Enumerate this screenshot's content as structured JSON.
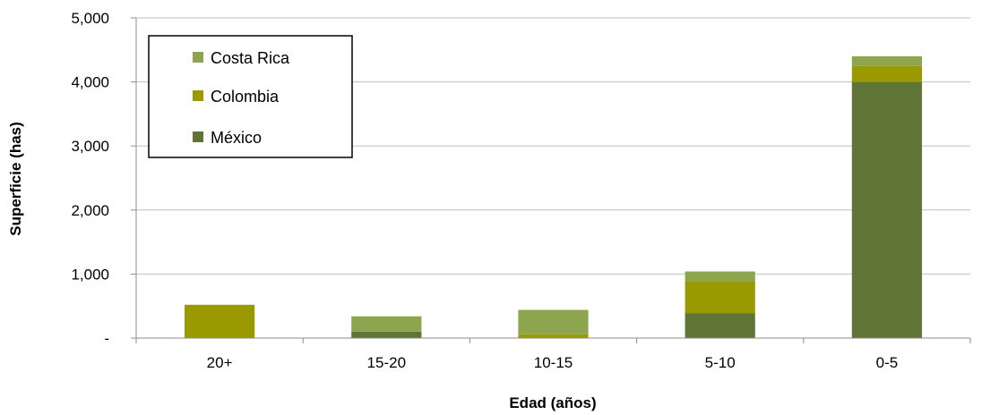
{
  "chart_data": {
    "type": "bar",
    "stacked": true,
    "title": "",
    "xlabel": "Edad (años)",
    "ylabel": "Superficie (has)",
    "categories": [
      "20+",
      "15-20",
      "10-15",
      "5-10",
      "0-5"
    ],
    "ylim": [
      0,
      5000
    ],
    "yticks": [
      0,
      1000,
      2000,
      3000,
      4000,
      5000
    ],
    "ytick_labels": [
      "-",
      "1,000",
      "2,000",
      "3,000",
      "4,000",
      "5,000"
    ],
    "grid": true,
    "legend_position": "top-left",
    "series": [
      {
        "name": "México",
        "color": "#5f7535",
        "values": [
          0,
          100,
          0,
          390,
          4000
        ]
      },
      {
        "name": "Colombia",
        "color": "#9a9a00",
        "values": [
          520,
          0,
          60,
          490,
          250
        ]
      },
      {
        "name": "Costa Rica",
        "color": "#8ea54f",
        "values": [
          0,
          240,
          380,
          160,
          150
        ]
      }
    ]
  }
}
